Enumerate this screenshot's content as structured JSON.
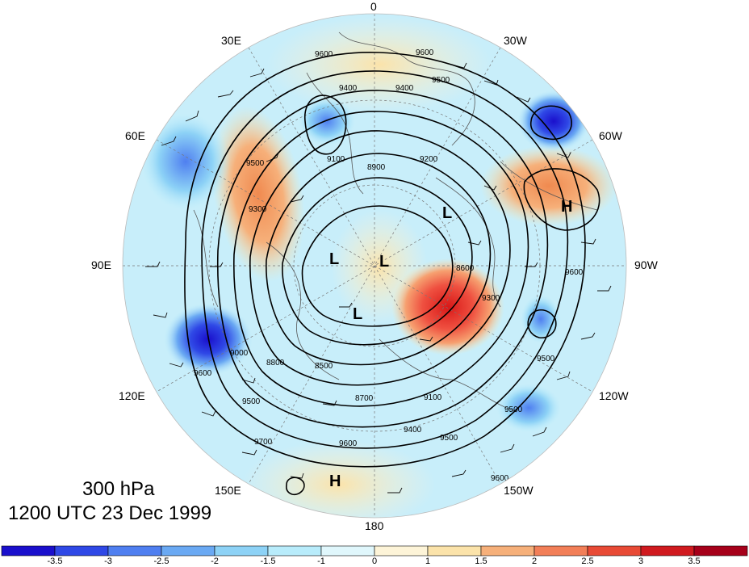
{
  "map": {
    "level": "300 hPa",
    "valid_time": "1200 UTC 23 Dec 1999",
    "longitude_labels": {
      "top": "0",
      "ne": "30W",
      "nw": "30E",
      "e_upper": "60W",
      "w_upper": "60E",
      "e_mid": "90W",
      "w_mid": "90E",
      "e_lower": "120W",
      "w_lower": "120E",
      "se": "150W",
      "sw": "150E",
      "bottom": "180"
    },
    "centers": [
      {
        "label": "H",
        "kind": "high"
      },
      {
        "label": "H",
        "kind": "high"
      },
      {
        "label": "L",
        "kind": "low"
      },
      {
        "label": "L",
        "kind": "low"
      },
      {
        "label": "L",
        "kind": "low"
      },
      {
        "label": "L",
        "kind": "low"
      }
    ],
    "contour_labels": [
      "9600",
      "9400",
      "9500",
      "9300",
      "9200",
      "9100",
      "9000",
      "8900",
      "8800",
      "8700",
      "8600",
      "8500",
      "9700"
    ],
    "colors": {
      "strong_negative": "#1a1acc",
      "negative": "#5aa6ee",
      "weak_negative": "#c8eefa",
      "weak_positive": "#fcefc6",
      "positive": "#f08a50",
      "strong_positive": "#d81818"
    }
  },
  "colorbar": {
    "ticks": [
      "-3.5",
      "-3",
      "-2.5",
      "-2",
      "-1.5",
      "-1",
      "0",
      "1",
      "1.5",
      "2",
      "2.5",
      "3",
      "3.5"
    ],
    "colors": [
      "#1a0fcc",
      "#2f48e6",
      "#4f7ff0",
      "#6aa9f3",
      "#8dd2f6",
      "#b8ecfb",
      "#e0f7fc",
      "#fdf4d8",
      "#fbe3aa",
      "#f6b07a",
      "#f27f58",
      "#e84a35",
      "#d01a1f",
      "#a6001a"
    ]
  }
}
